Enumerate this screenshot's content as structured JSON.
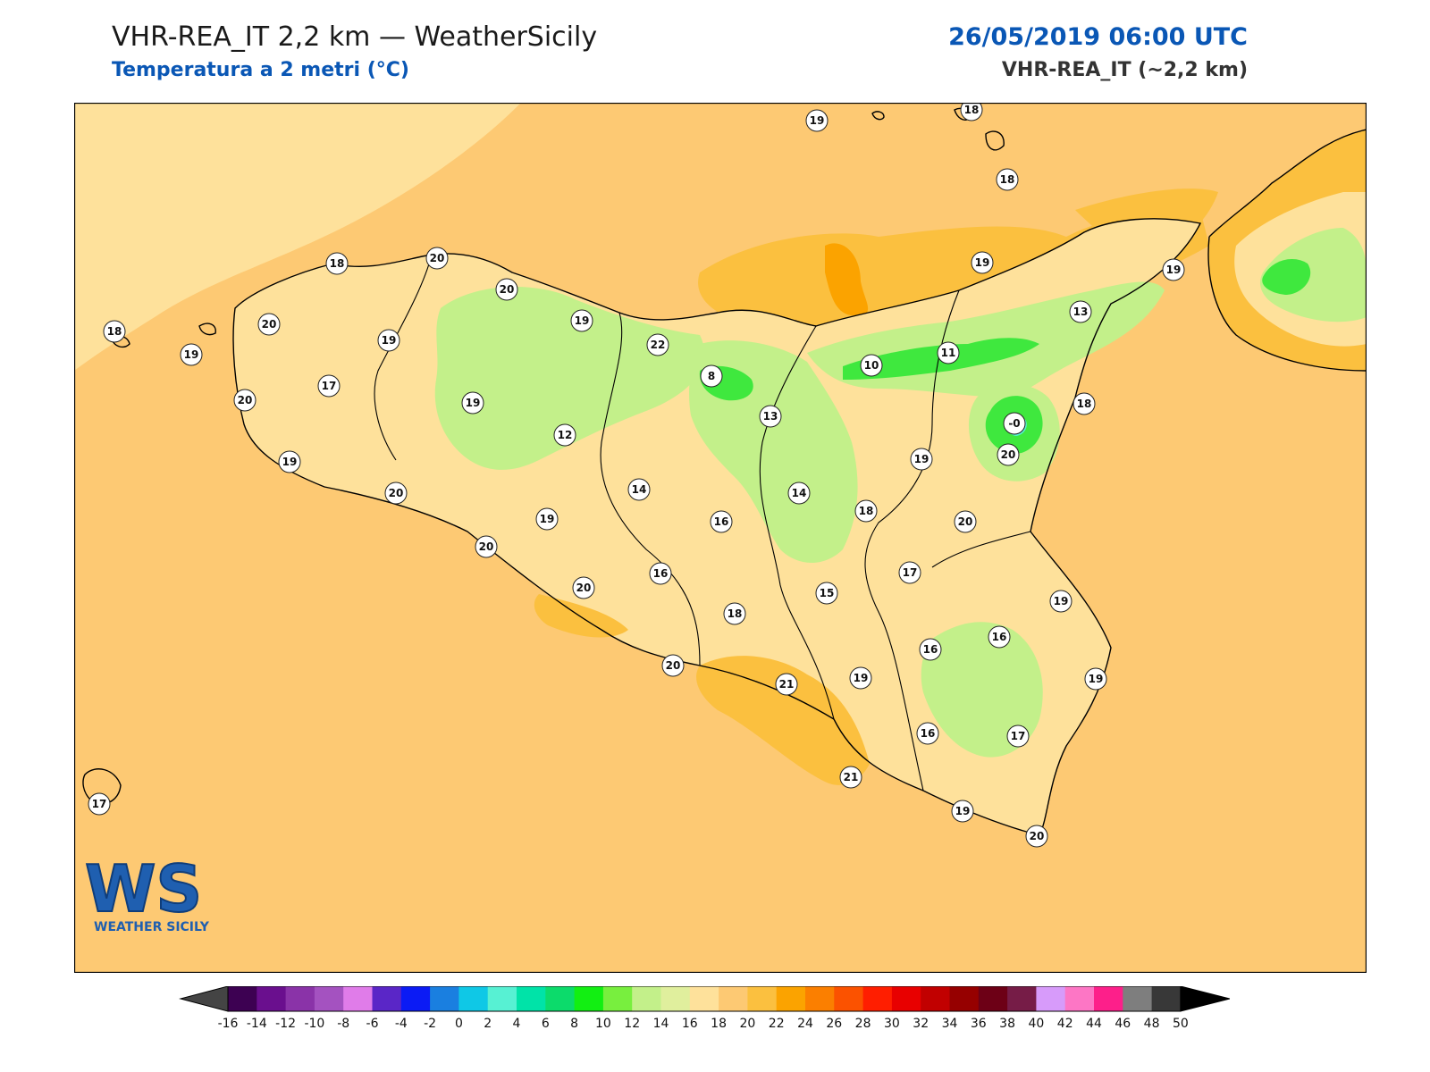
{
  "header": {
    "title": "VHR-REA_IT 2,2 km — WeatherSicily",
    "subtitle": "Temperatura a 2 metri (°C)",
    "datetime": "26/05/2019 06:00 UTC",
    "model": "VHR-REA_IT (~2,2 km)"
  },
  "logo": {
    "letters": "WS",
    "text": "WEATHER SICILY"
  },
  "colors": {
    "sea_fill": "#fdc973",
    "pale_fill": "#fee19b",
    "green_fill": "#c3f08a",
    "deep_green": "#3fe83e",
    "orange_fill": "#fbb03b",
    "coast": "#000000",
    "accent_blue": "#0a57b5"
  },
  "map_data": {
    "type": "temperature-field-map",
    "variable": "Temperatura a 2 metri (°C)",
    "stations": [
      {
        "v": "19",
        "lon": 0
      },
      {
        "v": "18",
        "lon": 1
      },
      {
        "v": "18",
        "lon": 2
      },
      {
        "v": "18",
        "lon": 3
      },
      {
        "v": "20",
        "lon": 4
      },
      {
        "v": "20",
        "lon": 5
      },
      {
        "v": "18",
        "lon": 6
      },
      {
        "v": "19",
        "lon": 7
      },
      {
        "v": "19",
        "lon": 8
      },
      {
        "v": "19",
        "lon": 9
      },
      {
        "v": "13",
        "lon": 10
      },
      {
        "v": "20",
        "lon": 11
      },
      {
        "v": "22",
        "lon": 12
      },
      {
        "v": "19",
        "lon": 13
      },
      {
        "v": "20",
        "lon": 14
      },
      {
        "v": "17",
        "lon": 15
      },
      {
        "v": "20",
        "lon": 16
      },
      {
        "v": "8",
        "lon": 17
      },
      {
        "v": "10",
        "lon": 18
      },
      {
        "v": "11",
        "lon": 19
      },
      {
        "v": "-0",
        "lon": 20
      },
      {
        "v": "18",
        "lon": 21
      },
      {
        "v": "19",
        "lon": 22
      },
      {
        "v": "12",
        "lon": 23
      },
      {
        "v": "13",
        "lon": 24
      },
      {
        "v": "19",
        "lon": 25
      },
      {
        "v": "19",
        "lon": 26
      },
      {
        "v": "20",
        "lon": 27
      },
      {
        "v": "14",
        "lon": 28
      },
      {
        "v": "14",
        "lon": 29
      },
      {
        "v": "18",
        "lon": 30
      },
      {
        "v": "20",
        "lon": 31
      },
      {
        "v": "19",
        "lon": 32
      },
      {
        "v": "19",
        "lon": 33
      },
      {
        "v": "16",
        "lon": 34
      },
      {
        "v": "20",
        "lon": 35
      },
      {
        "v": "16",
        "lon": 36
      },
      {
        "v": "17",
        "lon": 37
      },
      {
        "v": "20",
        "lon": 38
      },
      {
        "v": "15",
        "lon": 39
      },
      {
        "v": "19",
        "lon": 40
      },
      {
        "v": "18",
        "lon": 41
      },
      {
        "v": "16",
        "lon": 42
      },
      {
        "v": "16",
        "lon": 43
      },
      {
        "v": "20",
        "lon": 44
      },
      {
        "v": "21",
        "lon": 45
      },
      {
        "v": "19",
        "lon": 46
      },
      {
        "v": "19",
        "lon": 47
      },
      {
        "v": "16",
        "lon": 48
      },
      {
        "v": "17",
        "lon": 49
      },
      {
        "v": "17",
        "lon": 50
      },
      {
        "v": "21",
        "lon": 51
      },
      {
        "v": "19",
        "lon": 52
      },
      {
        "v": "20",
        "lon": 53
      }
    ]
  },
  "colorbar": {
    "ticks": [
      "-16",
      "-14",
      "-12",
      "-10",
      "-8",
      "-6",
      "-4",
      "-2",
      "0",
      "2",
      "4",
      "6",
      "8",
      "10",
      "12",
      "14",
      "16",
      "18",
      "20",
      "22",
      "24",
      "26",
      "28",
      "30",
      "32",
      "34",
      "36",
      "38",
      "40",
      "42",
      "44",
      "46",
      "48",
      "50"
    ],
    "colors": [
      "#3d0152",
      "#6a0f8e",
      "#8a33a8",
      "#a452c0",
      "#e07ce9",
      "#5a26c7",
      "#0b1bf5",
      "#1a7fe0",
      "#0fc8e6",
      "#57f1d3",
      "#00e3a8",
      "#0cdb6b",
      "#12ef12",
      "#78ef3e",
      "#c3f08a",
      "#e0ef9d",
      "#fee19b",
      "#fdc973",
      "#fbc03f",
      "#fba300",
      "#fb7f00",
      "#fb5200",
      "#ff1e00",
      "#e80000",
      "#c10000",
      "#960000",
      "#6d0016",
      "#761c47",
      "#d79bfa",
      "#fd76c5",
      "#fd1f8a",
      "#7e7e7e",
      "#383838"
    ]
  }
}
